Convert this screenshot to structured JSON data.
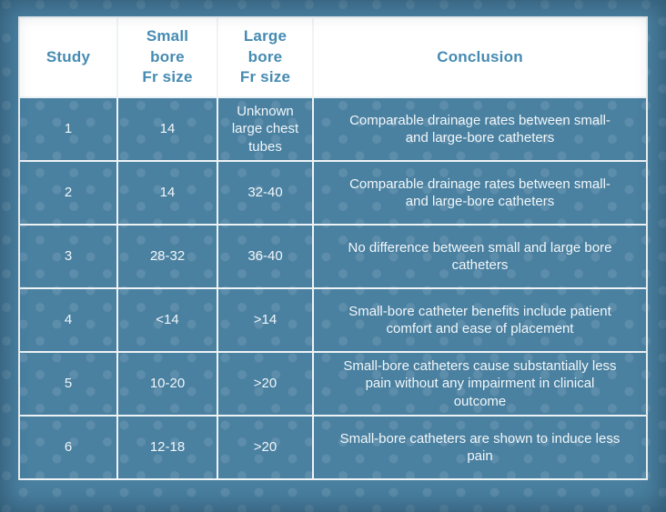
{
  "page": {
    "background_color": "#4a80a0",
    "dot_color": "rgba(255,255,255,0.10)",
    "border_color": "#eef3f6",
    "header_background": "#ffffff",
    "header_text_color": "#458bb2",
    "header_divider_color": "#5f9ab8",
    "cell_text_color": "#f1f7fa",
    "vignette_color": "rgba(15,40,60,0.45)"
  },
  "table": {
    "columns": [
      {
        "label": "Study"
      },
      {
        "label": "Small\nbore\nFr size"
      },
      {
        "label": "Large\nbore\nFr size"
      },
      {
        "label": "Conclusion"
      }
    ],
    "rows": [
      {
        "study": "1",
        "small_bore": "14",
        "large_bore": "Unknown large chest tubes",
        "conclusion": "Comparable drainage rates between small- and large-bore catheters"
      },
      {
        "study": "2",
        "small_bore": "14",
        "large_bore": "32-40",
        "conclusion": "Comparable drainage rates between small- and large-bore catheters"
      },
      {
        "study": "3",
        "small_bore": "28-32",
        "large_bore": "36-40",
        "conclusion": "No difference between small and large bore catheters"
      },
      {
        "study": "4",
        "small_bore": "<14",
        "large_bore": ">14",
        "conclusion": "Small-bore catheter benefits include patient comfort and ease of placement"
      },
      {
        "study": "5",
        "small_bore": "10-20",
        "large_bore": ">20",
        "conclusion": "Small-bore catheters cause substantially less pain without any impairment in clinical outcome"
      },
      {
        "study": "6",
        "small_bore": "12-18",
        "large_bore": ">20",
        "conclusion": "Small-bore catheters are shown to induce less pain"
      }
    ]
  },
  "chart_data": {
    "type": "table",
    "title": "",
    "columns": [
      "Study",
      "Small bore Fr size",
      "Large bore Fr size",
      "Conclusion"
    ],
    "rows": [
      [
        "1",
        "14",
        "Unknown large chest tubes",
        "Comparable drainage rates between small- and large-bore catheters"
      ],
      [
        "2",
        "14",
        "32-40",
        "Comparable drainage rates between small- and large-bore catheters"
      ],
      [
        "3",
        "28-32",
        "36-40",
        "No difference between small and large bore catheters"
      ],
      [
        "4",
        "<14",
        ">14",
        "Small-bore catheter benefits include patient comfort and ease of placement"
      ],
      [
        "5",
        "10-20",
        ">20",
        "Small-bore catheters cause substantially less pain without any impairment in clinical outcome"
      ],
      [
        "6",
        "12-18",
        ">20",
        "Small-bore catheters are shown to induce less pain"
      ]
    ]
  }
}
